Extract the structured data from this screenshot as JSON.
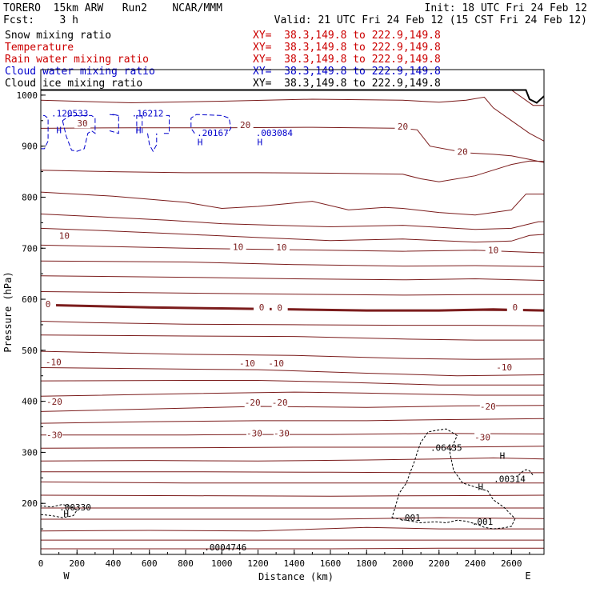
{
  "header": {
    "line1_left": "TORERO  15km ARW   Run2    NCAR/MMM",
    "line1_right": "Init: 18 UTC Fri 24 Feb 12",
    "line2_left": "Fcst:    3 h",
    "line2_right": "Valid: 21 UTC Fri 24 Feb 12 (15 CST Fri 24 Feb 12)"
  },
  "legend": [
    {
      "label": "Snow mixing ratio",
      "xy": "XY=  38.3,149.8 to 222.9,149.8",
      "label_color": "#000000",
      "xy_color": "#cc0000"
    },
    {
      "label": "Temperature",
      "xy": "XY=  38.3,149.8 to 222.9,149.8",
      "label_color": "#cc0000",
      "xy_color": "#cc0000"
    },
    {
      "label": "Rain water mixing ratio",
      "xy": "XY=  38.3,149.8 to 222.9,149.8",
      "label_color": "#cc0000",
      "xy_color": "#cc0000"
    },
    {
      "label": "Cloud water mixing ratio",
      "xy": "XY=  38.3,149.8 to 222.9,149.8",
      "label_color": "#0000cc",
      "xy_color": "#0000cc"
    },
    {
      "label": "Cloud ice mixing ratio",
      "xy": "XY=  38.3,149.8 to 222.9,149.8",
      "label_color": "#000000",
      "xy_color": "#000000"
    }
  ],
  "chart_data": {
    "type": "contour",
    "xlabel": "Distance (km)",
    "ylabel": "Pressure (hPa)",
    "xlim": [
      0,
      2780
    ],
    "ylim": [
      1050,
      100
    ],
    "x_ticks": [
      0,
      200,
      400,
      600,
      800,
      1000,
      1200,
      1400,
      1600,
      1800,
      2000,
      2200,
      2400,
      2600
    ],
    "y_ticks": [
      200,
      300,
      400,
      500,
      600,
      700,
      800,
      900,
      1000
    ],
    "west_label": "W",
    "east_label": "E",
    "temperature_color": "#7b1c1c",
    "temperature_contours": [
      {
        "x": [
          0,
          800,
          1600,
          2200,
          2780
        ],
        "y": [
          111,
          111,
          111,
          112,
          112
        ]
      },
      {
        "x": [
          0,
          1000,
          2000,
          2780
        ],
        "y": [
          128,
          128,
          128,
          128
        ]
      },
      {
        "x": [
          0,
          600,
          1200,
          1800,
          2200,
          2780
        ],
        "y": [
          146,
          147,
          146,
          153,
          150,
          150
        ]
      },
      {
        "x": [
          0,
          800,
          1600,
          2200,
          2780
        ],
        "y": [
          169,
          169,
          169,
          172,
          170
        ]
      },
      {
        "x": [
          0,
          800,
          1600,
          2200,
          2780
        ],
        "y": [
          191,
          191,
          191,
          191,
          191
        ]
      },
      {
        "x": [
          0,
          800,
          1600,
          2200,
          2780
        ],
        "y": [
          216,
          215,
          214,
          215,
          216
        ]
      },
      {
        "x": [
          0,
          800,
          1600,
          2200,
          2780
        ],
        "y": [
          242,
          240,
          240,
          240,
          240
        ]
      },
      {
        "x": [
          0,
          800,
          1600,
          2200,
          2780
        ],
        "y": [
          262,
          262,
          261,
          260,
          260
        ]
      },
      {
        "x": [
          0,
          600,
          1200,
          1800,
          2200,
          2500,
          2780
        ],
        "y": [
          283,
          284,
          283,
          285,
          287,
          289,
          287
        ]
      },
      {
        "x": [
          0,
          800,
          1400,
          2200,
          2780
        ],
        "y": [
          308,
          309,
          310,
          310,
          312
        ]
      },
      {
        "x": [
          0,
          800,
          1200,
          1600,
          2200,
          2780
        ],
        "y": [
          334,
          334,
          335,
          335,
          337,
          336
        ]
      },
      {
        "x": [
          0,
          600,
          1200,
          1800,
          2200,
          2780
        ],
        "y": [
          357,
          360,
          362,
          362,
          364,
          366
        ]
      },
      {
        "x": [
          0,
          600,
          1200,
          1800,
          2300,
          2780
        ],
        "y": [
          380,
          385,
          390,
          388,
          391,
          392
        ]
      },
      {
        "x": [
          0,
          800,
          1400,
          1800,
          2400,
          2780
        ],
        "y": [
          410,
          415,
          418,
          416,
          412,
          412
        ]
      },
      {
        "x": [
          0,
          800,
          1200,
          1600,
          2200,
          2780
        ],
        "y": [
          440,
          441,
          441,
          438,
          432,
          432
        ]
      },
      {
        "x": [
          0,
          800,
          1200,
          1800,
          2300,
          2780
        ],
        "y": [
          466,
          463,
          462,
          455,
          450,
          452
        ]
      },
      {
        "x": [
          0,
          800,
          1400,
          2000,
          2400,
          2780
        ],
        "y": [
          498,
          492,
          490,
          484,
          482,
          483
        ]
      },
      {
        "x": [
          0,
          800,
          1400,
          2000,
          2400,
          2780
        ],
        "y": [
          530,
          528,
          527,
          522,
          520,
          520
        ]
      },
      {
        "x": [
          0,
          300,
          800,
          1400,
          2000,
          2400,
          2780
        ],
        "y": [
          557,
          554,
          551,
          550,
          549,
          549,
          548
        ]
      },
      {
        "x": [
          0,
          800,
          1400,
          2000,
          2400,
          2780
        ],
        "y": [
          589,
          584,
          580,
          577,
          578,
          577
        ]
      },
      {
        "x": [
          0,
          800,
          1400,
          2000,
          2400,
          2780
        ],
        "y": [
          615,
          612,
          610,
          608,
          609,
          609
        ]
      },
      {
        "x": [
          0,
          800,
          1400,
          2000,
          2400,
          2780
        ],
        "y": [
          646,
          643,
          640,
          638,
          640,
          637
        ]
      },
      {
        "x": [
          0,
          800,
          1400,
          2000,
          2400,
          2780
        ],
        "y": [
          675,
          673,
          668,
          665,
          666,
          664
        ]
      },
      {
        "x": [
          0,
          400,
          800,
          1400,
          2000,
          2400,
          2780
        ],
        "y": [
          706,
          703,
          700,
          697,
          694,
          696,
          691
        ]
      },
      {
        "x": [
          0,
          300,
          700,
          1200,
          1600,
          2000,
          2400,
          2600,
          2700,
          2780
        ],
        "y": [
          739,
          735,
          729,
          721,
          715,
          718,
          712,
          714,
          725,
          727
        ]
      },
      {
        "x": [
          0,
          300,
          700,
          1000,
          1300,
          1600,
          2000,
          2400,
          2600,
          2750,
          2780
        ],
        "y": [
          767,
          762,
          755,
          748,
          745,
          742,
          745,
          737,
          739,
          752,
          752
        ]
      },
      {
        "x": [
          0,
          400,
          800,
          1000,
          1200,
          1500,
          1700,
          1900,
          2000,
          2200,
          2400,
          2600,
          2680,
          2780
        ],
        "y": [
          810,
          802,
          790,
          778,
          782,
          792,
          775,
          780,
          778,
          770,
          765,
          775,
          806,
          806
        ]
      },
      {
        "x": [
          0,
          400,
          800,
          1200,
          1600,
          2000,
          2100,
          2200,
          2400,
          2600,
          2700,
          2780
        ],
        "y": [
          853,
          850,
          848,
          848,
          847,
          845,
          836,
          830,
          842,
          864,
          871,
          870
        ]
      },
      {
        "x": [
          0,
          500,
          1000,
          1500,
          2000,
          2080,
          2150,
          2350,
          2500,
          2600,
          2700,
          2780
        ],
        "y": [
          935,
          936,
          936,
          937,
          935,
          932,
          900,
          887,
          884,
          881,
          874,
          868
        ]
      },
      {
        "x": [
          0,
          500,
          1000,
          1500,
          2000,
          2200,
          2350,
          2450,
          2500,
          2600,
          2700,
          2780
        ],
        "y": [
          990,
          985,
          988,
          992,
          990,
          986,
          990,
          996,
          975,
          950,
          925,
          910
        ]
      },
      {
        "x": [
          2600,
          2680,
          2720,
          2780
        ],
        "y": [
          1010,
          990,
          980,
          980
        ]
      }
    ],
    "bold_contour": {
      "label": "0",
      "x": [
        0,
        600,
        1000,
        1400,
        1800,
        2200,
        2500,
        2780
      ],
      "y": [
        589,
        584,
        582,
        580,
        578,
        578,
        580,
        578
      ]
    },
    "temperature_labels": [
      {
        "text": "-30",
        "x": 75,
        "y": 330
      },
      {
        "text": "-30",
        "x": 1180,
        "y": 333
      },
      {
        "text": "-30",
        "x": 1330,
        "y": 333
      },
      {
        "text": "-30",
        "x": 2440,
        "y": 325
      },
      {
        "text": "-20",
        "x": 75,
        "y": 395
      },
      {
        "text": "-20",
        "x": 1170,
        "y": 393
      },
      {
        "text": "-20",
        "x": 1320,
        "y": 393
      },
      {
        "text": "-20",
        "x": 2470,
        "y": 385
      },
      {
        "text": "-10",
        "x": 70,
        "y": 472
      },
      {
        "text": "-10",
        "x": 1140,
        "y": 470
      },
      {
        "text": "-10",
        "x": 1300,
        "y": 470
      },
      {
        "text": "-10",
        "x": 2560,
        "y": 462
      },
      {
        "text": "0",
        "x": 1220,
        "y": 580
      },
      {
        "text": "0",
        "x": 1320,
        "y": 579
      },
      {
        "text": "0",
        "x": 40,
        "y": 586
      },
      {
        "text": "0",
        "x": 2620,
        "y": 580
      },
      {
        "text": "10",
        "x": 1090,
        "y": 698
      },
      {
        "text": "10",
        "x": 1330,
        "y": 697
      },
      {
        "text": "10",
        "x": 130,
        "y": 720
      },
      {
        "text": "10",
        "x": 2500,
        "y": 692
      },
      {
        "text": "20",
        "x": 1130,
        "y": 937
      },
      {
        "text": "20",
        "x": 2000,
        "y": 934
      },
      {
        "text": "20",
        "x": 2330,
        "y": 885
      },
      {
        "text": "30",
        "x": 230,
        "y": 940
      }
    ],
    "snow_contours": [
      {
        "x": [
          1940,
          2000,
          2100,
          2180,
          2240,
          2300,
          2350,
          2380,
          2420,
          2450,
          2500,
          2560,
          2600,
          2620,
          2560,
          2500,
          2470,
          2400,
          2330,
          2280,
          2260,
          2300,
          2240,
          2200,
          2140,
          2100,
          2080,
          2060,
          2040,
          2020,
          1980,
          1960,
          1940
        ],
        "y": [
          172,
          168,
          162,
          164,
          162,
          167,
          165,
          162,
          158,
          153,
          150,
          152,
          155,
          170,
          192,
          207,
          224,
          232,
          240,
          265,
          300,
          333,
          346,
          344,
          340,
          320,
          300,
          278,
          260,
          240,
          220,
          195,
          172
        ]
      },
      {
        "x": [
          0,
          60,
          120,
          180,
          200,
          160,
          120,
          60,
          0
        ],
        "y": [
          178,
          176,
          172,
          176,
          187,
          194,
          198,
          193,
          195
        ]
      },
      {
        "x": [
          2640,
          2660,
          2680,
          2700,
          2720
        ],
        "y": [
          255,
          262,
          266,
          264,
          255
        ]
      }
    ],
    "snow_labels": [
      {
        "text": ".001",
        "x": 2040,
        "y": 166
      },
      {
        "text": ".001",
        "x": 2440,
        "y": 158
      },
      {
        "text": "H",
        "x": 140,
        "y": 174
      },
      {
        "text": ".00330",
        "x": 190,
        "y": 186
      },
      {
        "text": "H",
        "x": 2550,
        "y": 287
      },
      {
        "text": ".06435",
        "x": 2240,
        "y": 303
      },
      {
        "text": "H",
        "x": 2430,
        "y": 226
      },
      {
        "text": ".00314",
        "x": 2590,
        "y": 242
      },
      {
        "text": ".0004746",
        "x": 1020,
        "y": 108
      }
    ],
    "cloud_water_color": "#0000cc",
    "cloud_water_contours": [
      {
        "x": [
          0,
          20,
          40,
          40,
          20,
          0
        ],
        "y": [
          895,
          895,
          910,
          955,
          960,
          960
        ]
      },
      {
        "x": [
          120,
          140,
          170,
          200,
          240,
          260,
          280,
          300,
          300,
          280,
          160,
          120
        ],
        "y": [
          950,
          920,
          892,
          890,
          895,
          925,
          930,
          925,
          955,
          960,
          960,
          950
        ]
      },
      {
        "x": [
          380,
          430,
          430,
          400,
          380,
          430
        ],
        "y": [
          930,
          925,
          960,
          962,
          962,
          960
        ]
      },
      {
        "x": [
          590,
          600,
          620,
          640,
          640
        ],
        "y": [
          925,
          903,
          890,
          903,
          925
        ]
      },
      {
        "x": [
          530,
          530,
          560,
          560
        ],
        "y": [
          925,
          960,
          960,
          925
        ]
      },
      {
        "x": [
          680,
          710,
          710,
          680
        ],
        "y": [
          925,
          925,
          960,
          960
        ]
      },
      {
        "x": [
          850,
          830,
          830,
          860,
          1000,
          1040,
          1050,
          1030
        ],
        "y": [
          925,
          935,
          955,
          962,
          960,
          955,
          935,
          925
        ]
      }
    ],
    "cloud_water_labels": [
      {
        "text": "H",
        "x": 100,
        "y": 925
      },
      {
        "text": ".120533",
        "x": 160,
        "y": 958
      },
      {
        "text": "H",
        "x": 540,
        "y": 925
      },
      {
        "text": ".16212",
        "x": 590,
        "y": 958
      },
      {
        "text": "H",
        "x": 880,
        "y": 902
      },
      {
        "text": ".20167",
        "x": 950,
        "y": 920
      },
      {
        "text": "H",
        "x": 1210,
        "y": 902
      },
      {
        "text": ".003084",
        "x": 1290,
        "y": 920
      }
    ],
    "terrain": {
      "x": [
        0,
        2000,
        2300,
        2500,
        2680,
        2700,
        2740,
        2780
      ],
      "y": [
        1010,
        1010,
        1010,
        1010,
        1010,
        992,
        985,
        998
      ]
    }
  }
}
